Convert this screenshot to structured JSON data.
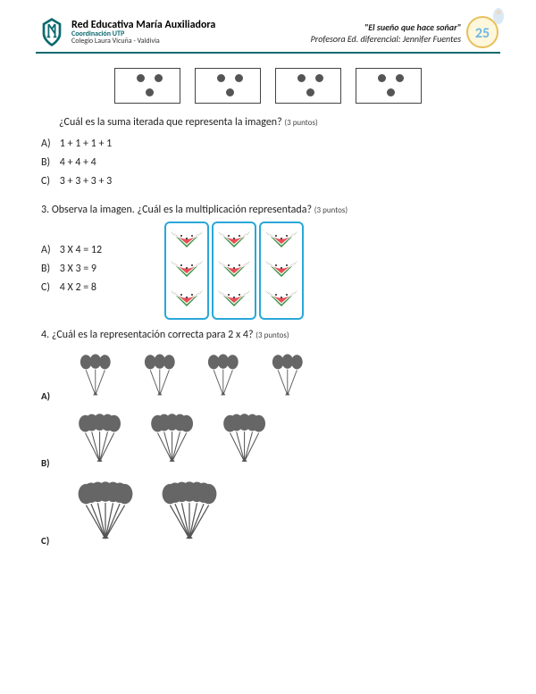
{
  "header": {
    "org_title": "Red Educativa María Auxiliadora",
    "org_sub": "Coordinación UTP",
    "school": "Colegio Laura Vicuña - Valdivia",
    "motto": "\"El sueño que hace soñar\"",
    "teacher": "Profesora Ed. diferencial: Jennifer Fuentes",
    "badge_number": "25",
    "colors": {
      "primary": "#0d6a6f",
      "badge_blue": "#6fb7e6",
      "badge_gold": "#e8c05a"
    }
  },
  "q2": {
    "dot_boxes": 4,
    "dots_per_box": 3,
    "text": "¿Cuál es la suma iterada que representa la imagen?",
    "points": "(3 puntos)",
    "options": [
      {
        "label": "A)",
        "text": "1 + 1 + 1 + 1"
      },
      {
        "label": "B)",
        "text": "4 + 4 + 4"
      },
      {
        "label": "C)",
        "text": "3 + 3 + 3 + 3"
      }
    ]
  },
  "q3": {
    "number_text": "3.  Observa la imagen. ¿Cuál es la multiplicación representada?",
    "points": "(3 puntos)",
    "panels": 3,
    "slices_per_panel": 3,
    "options": [
      {
        "label": "A)",
        "text": "3 X 4 = 12"
      },
      {
        "label": "B)",
        "text": "3 X 3 = 9"
      },
      {
        "label": "C)",
        "text": "4 X 2 = 8"
      }
    ]
  },
  "q4": {
    "number_text": "4.  ¿Cuál es la representación correcta para 2 x 4?",
    "points": "(3 puntos)",
    "rows": [
      {
        "label": "A)",
        "groups": 4,
        "balloons_per_group": 3
      },
      {
        "label": "B)",
        "groups": 3,
        "balloons_per_group": 5
      },
      {
        "label": "C)",
        "groups": 2,
        "balloons_per_group": 7
      }
    ]
  }
}
